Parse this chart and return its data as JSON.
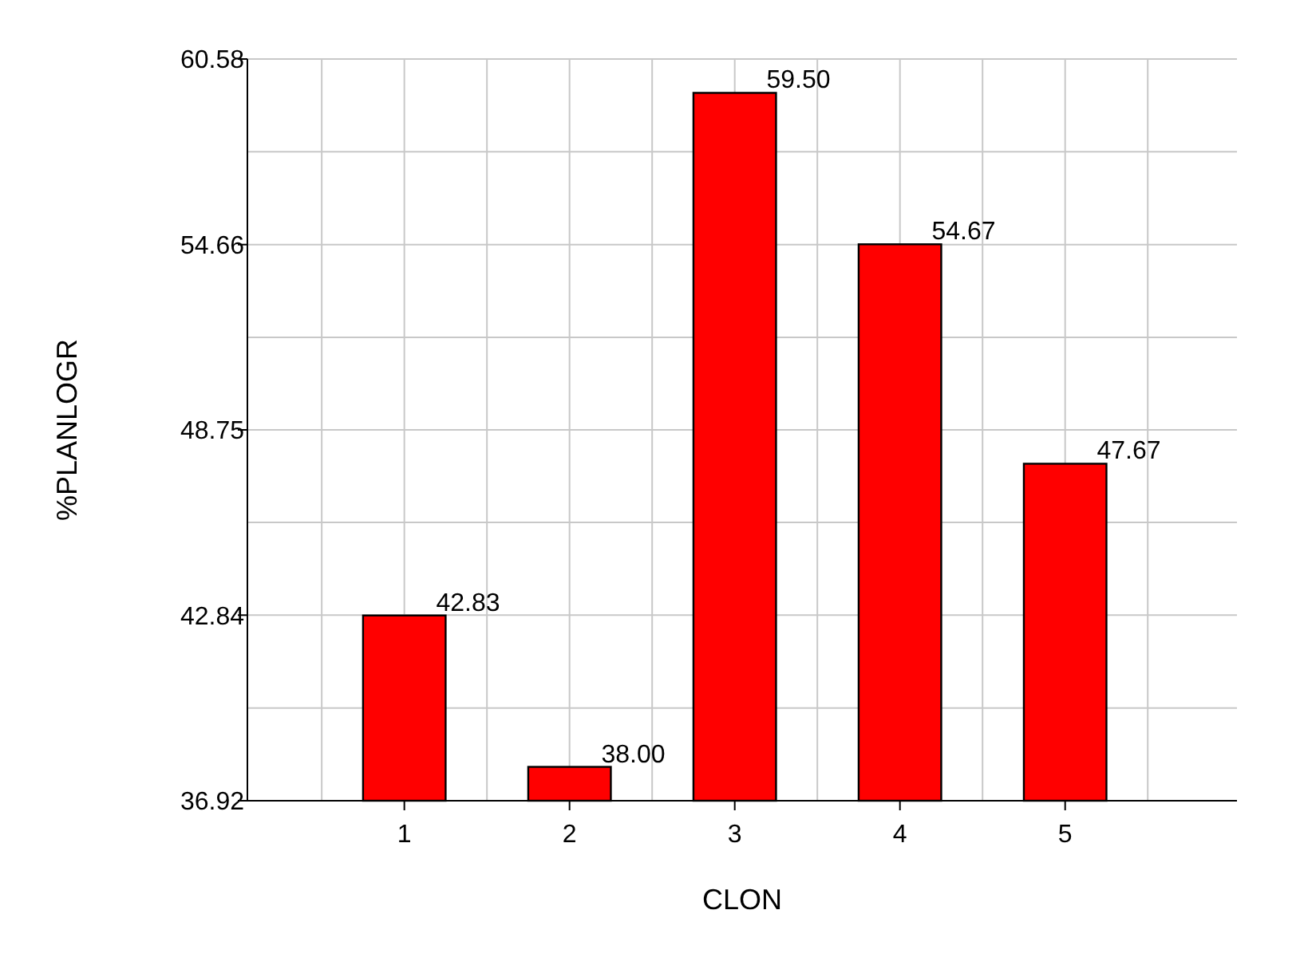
{
  "chart_data": {
    "type": "bar",
    "xlabel": "CLON",
    "ylabel": "%PLANLOGR",
    "x": [
      1,
      2,
      3,
      4,
      5
    ],
    "values": [
      42.83,
      38.0,
      59.5,
      54.67,
      47.67
    ],
    "value_labels": [
      "42.83",
      "38.00",
      "59.50",
      "54.67",
      "47.67"
    ],
    "color": "#ff0000",
    "xlim": [
      0.05,
      6.04
    ],
    "xticks": [
      {
        "value": 0.5,
        "label": null
      },
      1,
      {
        "value": 1.5,
        "label": null
      },
      2,
      {
        "value": 2.5,
        "label": null
      },
      3,
      {
        "value": 3.5,
        "label": null
      },
      4,
      {
        "value": 4.5,
        "label": null
      },
      5,
      {
        "value": 5.5,
        "label": null
      }
    ],
    "ylim": [
      36.92,
      60.58
    ],
    "yticks": [
      36.92,
      {
        "value": 39.88,
        "label": null
      },
      42.84,
      {
        "value": 45.8,
        "label": null
      },
      48.75,
      {
        "value": 51.7,
        "label": null
      },
      54.66,
      {
        "value": 57.62,
        "label": null
      },
      60.58
    ],
    "grid": true
  }
}
